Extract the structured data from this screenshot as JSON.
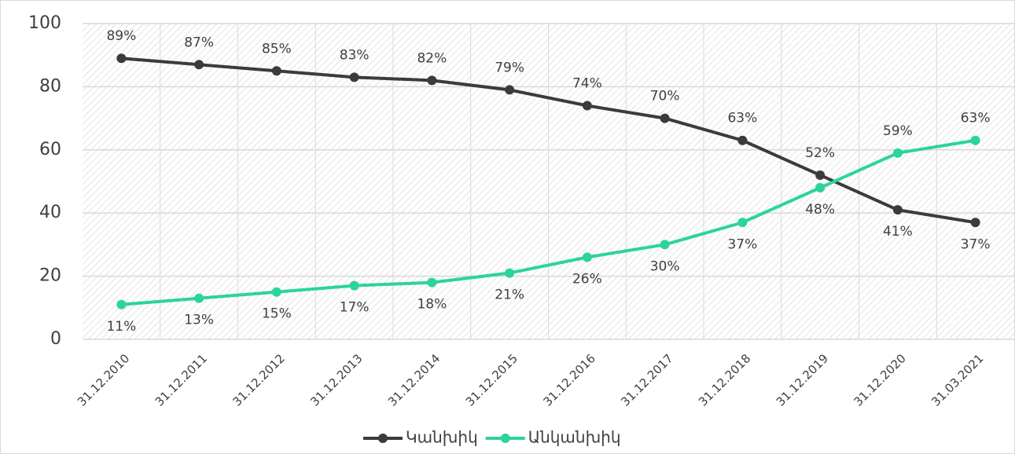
{
  "chart_data": {
    "type": "line",
    "categories": [
      "31.12.2010",
      "31.12.2011",
      "31.12.2012",
      "31.12.2013",
      "31.12.2014",
      "31.12.2015",
      "31.12.2016",
      "31.12.2017",
      "31.12.2018",
      "31.12.2019",
      "31.12.2020",
      "31.03.2021"
    ],
    "series": [
      {
        "name": "Կանխիկ",
        "color": "#3b3b3b",
        "values": [
          89,
          87,
          85,
          83,
          82,
          79,
          74,
          70,
          63,
          52,
          41,
          37
        ],
        "value_labels": [
          "89%",
          "87%",
          "85%",
          "83%",
          "82%",
          "79%",
          "74%",
          "70%",
          "63%",
          "52%",
          "41%",
          "37%"
        ]
      },
      {
        "name": "Անկանխիկ",
        "color": "#2cd39e",
        "values": [
          11,
          13,
          15,
          17,
          18,
          21,
          26,
          30,
          37,
          48,
          59,
          63
        ],
        "value_labels": [
          "11%",
          "13%",
          "15%",
          "17%",
          "18%",
          "21%",
          "26%",
          "30%",
          "37%",
          "48%",
          "59%",
          "63%"
        ]
      }
    ],
    "ylim": [
      0,
      100
    ],
    "yticks": [
      0,
      20,
      40,
      60,
      80,
      100
    ],
    "grid": true,
    "legend": "bottom"
  }
}
